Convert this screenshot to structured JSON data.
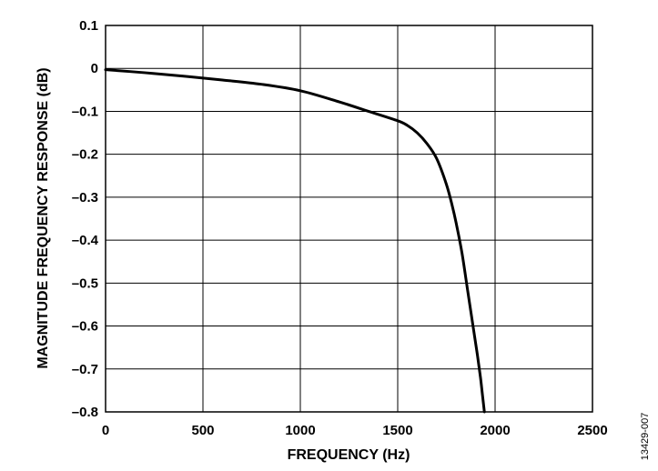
{
  "chart_data": {
    "type": "line",
    "title": "",
    "xlabel": "FREQUENCY (Hz)",
    "ylabel": "MAGNITUDE FREQUENCY RESPONSE (dB)",
    "xlim": [
      0,
      2500
    ],
    "ylim": [
      -0.8,
      0.1
    ],
    "xticks": [
      0,
      500,
      1000,
      1500,
      2000,
      2500
    ],
    "yticks": [
      0.1,
      0,
      -0.1,
      -0.2,
      -0.3,
      -0.4,
      -0.5,
      -0.6,
      -0.7,
      -0.8
    ],
    "xtick_labels": [
      "0",
      "500",
      "1000",
      "1500",
      "2000",
      "2500"
    ],
    "ytick_labels": [
      "0.1",
      "0",
      "–0.1",
      "–0.2",
      "–0.3",
      "–0.4",
      "–0.5",
      "–0.6",
      "–0.7",
      "–0.8"
    ],
    "grid": true,
    "line_color": "#000000",
    "series": [
      {
        "x": [
          0,
          200,
          400,
          600,
          800,
          1000,
          1200,
          1350,
          1500,
          1550,
          1600,
          1650,
          1700,
          1750,
          1780,
          1800,
          1830,
          1860,
          1890,
          1910,
          1925,
          1935,
          1945
        ],
        "y": [
          -0.003,
          -0.01,
          -0.018,
          -0.027,
          -0.037,
          -0.052,
          -0.078,
          -0.1,
          -0.122,
          -0.133,
          -0.15,
          -0.175,
          -0.21,
          -0.27,
          -0.32,
          -0.36,
          -0.43,
          -0.52,
          -0.61,
          -0.67,
          -0.72,
          -0.76,
          -0.8
        ]
      }
    ],
    "figure_id": "13429-007"
  }
}
